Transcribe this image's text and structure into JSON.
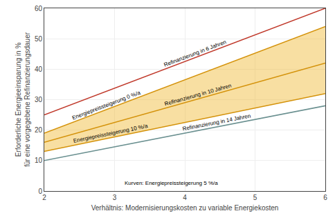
{
  "chart_data": {
    "type": "line",
    "xlabel": "Verhältnis: Modernisierungskosten zu variable Energiekosten",
    "ylabel": "Erforderliche Energieeinsparung in %\nfür eine vorgegebene Refinanzierungsdauer",
    "xlim": [
      2,
      6
    ],
    "ylim": [
      0,
      60
    ],
    "xticks": [
      2,
      3,
      4,
      5,
      6
    ],
    "yticks": [
      0,
      10,
      20,
      30,
      40,
      50,
      60
    ],
    "grid": true,
    "series": [
      {
        "name": "Refinanzierung in 6 Jahren",
        "color": "#c0392b",
        "x": [
          2,
          6
        ],
        "values": [
          25,
          60
        ]
      },
      {
        "name": "Energiepreissteigerung 0 %/a",
        "color": "#d4920a",
        "x": [
          2,
          6
        ],
        "values": [
          19,
          54
        ]
      },
      {
        "name": "Refinanzierung in 10 Jahren",
        "color": "#d4920a",
        "x": [
          2,
          6
        ],
        "values": [
          16,
          42
        ]
      },
      {
        "name": "Energiepreissteigerung 10 %/a",
        "color": "#d4920a",
        "x": [
          2,
          6
        ],
        "values": [
          13,
          32
        ]
      },
      {
        "name": "Refinanzierung in 14 Jahren",
        "color": "#6a9090",
        "x": [
          2,
          6
        ],
        "values": [
          10,
          28
        ]
      }
    ],
    "bands": [
      {
        "upper": "Energiepreissteigerung 0 %/a",
        "lower": "Energiepreissteigerung 10 %/a",
        "color": "#f0b830"
      }
    ],
    "annotations": [
      "Kurven: Energiepreissteigerung 5 %/a"
    ]
  }
}
